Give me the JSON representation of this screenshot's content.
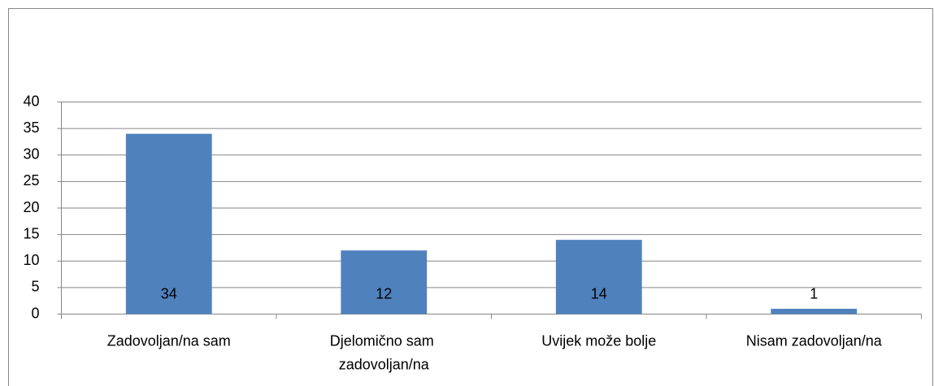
{
  "chart_data": {
    "type": "bar",
    "categories": [
      "Zadovoljan/na sam",
      "Djelomično sam zadovoljan/na",
      "Uvijek može bolje",
      "Nisam zadovoljan/na"
    ],
    "values": [
      34,
      12,
      14,
      1
    ],
    "color": "#4f81bd",
    "ylim": [
      0,
      40
    ],
    "yticks": [
      0,
      5,
      10,
      15,
      20,
      25,
      30,
      35,
      40
    ],
    "grid": true
  }
}
